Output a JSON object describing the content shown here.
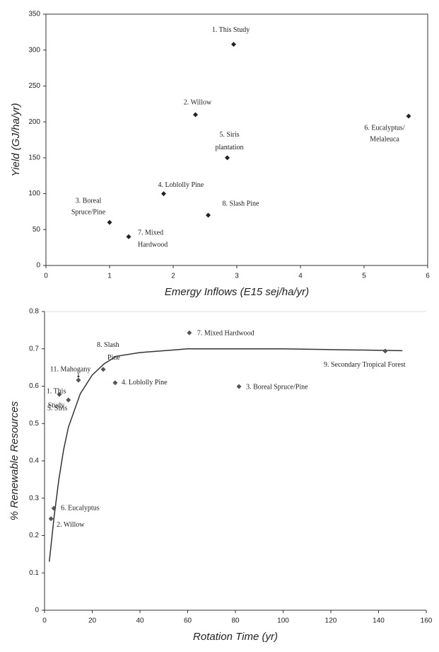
{
  "chart_data": [
    {
      "type": "scatter",
      "x_label": "Emergy Inflows (E15 sej/ha/yr)",
      "y_label": "Yield (GJ/ha/yr)",
      "xlim": [
        0,
        6
      ],
      "ylim": [
        0,
        350
      ],
      "xticks": [
        0,
        1,
        2,
        3,
        4,
        5,
        6
      ],
      "yticks": [
        0,
        50,
        100,
        150,
        200,
        250,
        300,
        350
      ],
      "color": "#222222",
      "frame": true,
      "x": [
        2.95,
        2.35,
        1.0,
        1.85,
        2.85,
        5.7,
        1.3,
        2.55
      ],
      "values": [
        308,
        210,
        60,
        100,
        150,
        208,
        40,
        70
      ],
      "labels": [
        [
          "1. This Study"
        ],
        [
          "2. Willow"
        ],
        [
          "3. Boreal",
          "Spruce/Pine"
        ],
        [
          "4. Loblolly Pine"
        ],
        [
          "5. Siris",
          "plantation"
        ],
        [
          "6. Eucalyptus/",
          "Melaleuca"
        ],
        [
          "7. Mixed",
          "Hardwood"
        ],
        [
          "8. Slash Pine"
        ]
      ]
    },
    {
      "type": "scatter",
      "x_label": "Rotation Time (yr)",
      "y_label": "% Renewable Resources",
      "xlim": [
        0,
        160
      ],
      "ylim": [
        0,
        0.8
      ],
      "xticks": [
        0,
        20,
        40,
        60,
        80,
        100,
        120,
        140,
        160
      ],
      "yticks": [
        0,
        0.1,
        0.2,
        0.3,
        0.4,
        0.5,
        0.6,
        0.7,
        0.8
      ],
      "color": "#555555",
      "frame": false,
      "x": [
        10,
        2.7,
        81.5,
        29.6,
        6.2,
        3.9,
        60.7,
        24.6,
        142.8,
        14.2
      ],
      "values": [
        0.563,
        0.245,
        0.599,
        0.609,
        0.578,
        0.273,
        0.743,
        0.645,
        0.694,
        0.616
      ],
      "labels": [
        [
          "1. This",
          "Study"
        ],
        [
          "2. Willow"
        ],
        [
          "3. Boreal Spruce/Pine"
        ],
        [
          "4. Loblolly Pine"
        ],
        [
          "5. Siris"
        ],
        [
          "6. Eucalyptus"
        ],
        [
          "7. Mixed Hardwood"
        ],
        [
          "8. Slash",
          "Pine"
        ],
        [
          "9. Secondary Tropical Forest"
        ],
        [
          "11. Mahogany"
        ]
      ],
      "curve": {
        "x": [
          2,
          4,
          6,
          8,
          10,
          15,
          20,
          25,
          30,
          40,
          60,
          100,
          150
        ],
        "values": [
          0.13,
          0.25,
          0.35,
          0.43,
          0.49,
          0.58,
          0.63,
          0.66,
          0.68,
          0.69,
          0.7,
          0.7,
          0.695
        ]
      }
    }
  ]
}
